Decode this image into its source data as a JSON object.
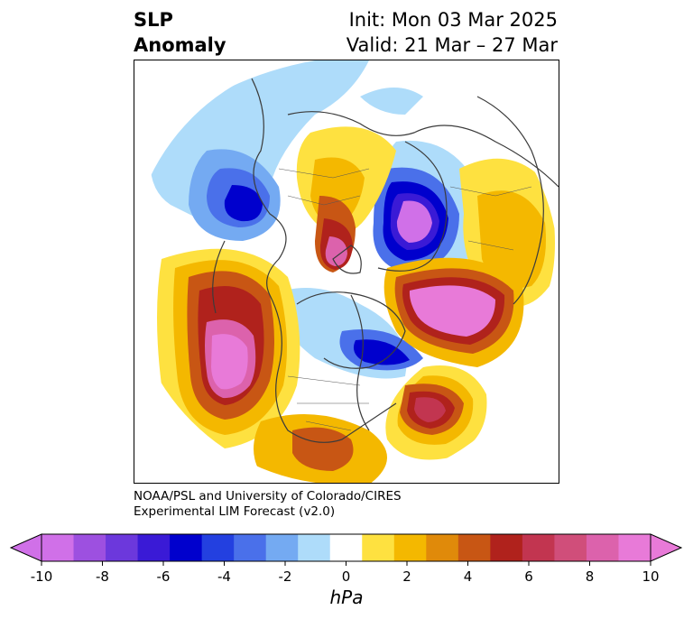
{
  "title": {
    "line1": "SLP",
    "line2": "Anomaly"
  },
  "init": "Init: Mon 03 Mar 2025",
  "valid": "Valid: 21 Mar – 27 Mar",
  "credit": {
    "line1": "NOAA/PSL and University of Colorado/CIRES",
    "line2": "Experimental LIM Forecast (v2.0)"
  },
  "colorbar": {
    "unit": "hPa",
    "tick_labels": [
      "-10",
      "-8",
      "-6",
      "-4",
      "-2",
      "0",
      "2",
      "4",
      "6",
      "8",
      "10"
    ],
    "colors": [
      "#d070e8",
      "#9d50e0",
      "#6c38dc",
      "#3a1ad6",
      "#0000cd",
      "#2340e0",
      "#4a70ea",
      "#74aaf2",
      "#aedcfa",
      "#ffffff",
      "#fee140",
      "#f4b800",
      "#e08a0a",
      "#c85614",
      "#b0221c",
      "#c23550",
      "#d04e7a",
      "#dc62ac",
      "#e87ad8"
    ],
    "over_color": "#e87ad8",
    "under_color": "#d070e8"
  }
}
